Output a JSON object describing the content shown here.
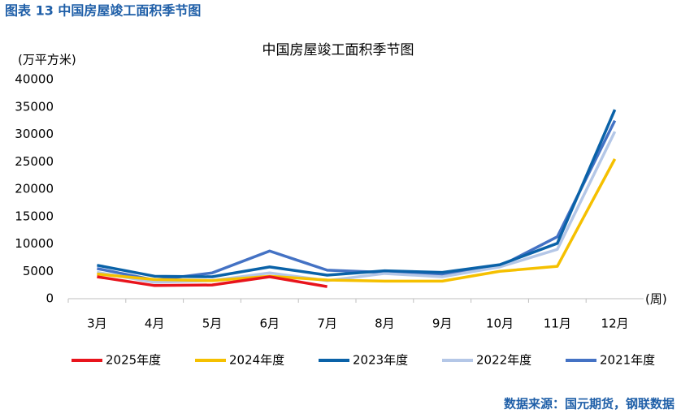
{
  "header": "图表 13 中国房屋竣工面积季节图",
  "source": "数据来源：国元期货，钢联数据",
  "chart_data": {
    "type": "line",
    "title": "中国房屋竣工面积季节图",
    "y_label": "(万平方米)",
    "x_label": "(周)",
    "categories": [
      "3月",
      "4月",
      "5月",
      "6月",
      "7月",
      "8月",
      "9月",
      "10月",
      "11月",
      "12月"
    ],
    "ylim": [
      0,
      40000
    ],
    "yticks": [
      0,
      5000,
      10000,
      15000,
      20000,
      25000,
      30000,
      35000,
      40000
    ],
    "grid": false,
    "legend": "bottom",
    "series": [
      {
        "name": "2025年度",
        "color": "#e8141c",
        "values": [
          4000,
          2400,
          2500,
          4000,
          2200,
          null,
          null,
          null,
          null,
          null
        ]
      },
      {
        "name": "2024年度",
        "color": "#f5c000",
        "values": [
          4500,
          3500,
          3300,
          4100,
          3400,
          3200,
          3200,
          5000,
          5900,
          25500
        ]
      },
      {
        "name": "2023年度",
        "color": "#0a62a8",
        "values": [
          6100,
          4100,
          4000,
          5800,
          4300,
          5100,
          4800,
          6200,
          10100,
          34500
        ]
      },
      {
        "name": "2022年度",
        "color": "#b4c7e7",
        "values": [
          4800,
          3000,
          3300,
          4700,
          3300,
          4600,
          4000,
          5800,
          9000,
          30500
        ]
      },
      {
        "name": "2021年度",
        "color": "#4472c4",
        "values": [
          5500,
          3400,
          4700,
          8700,
          5200,
          4800,
          4300,
          5900,
          11300,
          32500
        ]
      }
    ]
  }
}
